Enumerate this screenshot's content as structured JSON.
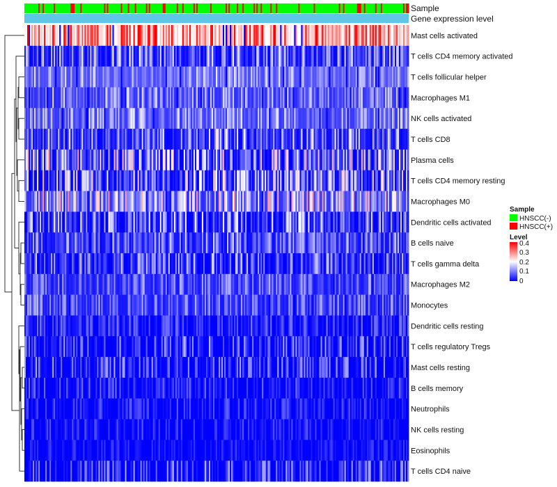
{
  "chart_data": {
    "type": "heatmap",
    "title": "",
    "n_samples": 275,
    "rows": [
      {
        "label": "Mast cells activated",
        "mean": 0.27,
        "spread": 0.13
      },
      {
        "label": "T cells CD4 memory activated",
        "mean": 0.05,
        "spread": 0.09
      },
      {
        "label": "T cells follicular helper",
        "mean": 0.09,
        "spread": 0.06
      },
      {
        "label": "Macrophages M1",
        "mean": 0.07,
        "spread": 0.07
      },
      {
        "label": "NK cells activated",
        "mean": 0.08,
        "spread": 0.07
      },
      {
        "label": "T cells CD8",
        "mean": 0.06,
        "spread": 0.1
      },
      {
        "label": "Plasma cells",
        "mean": 0.07,
        "spread": 0.13
      },
      {
        "label": "T cells CD4 memory resting",
        "mean": 0.06,
        "spread": 0.12
      },
      {
        "label": "Macrophages M0",
        "mean": 0.1,
        "spread": 0.12
      },
      {
        "label": "Dendritic cells activated",
        "mean": 0.05,
        "spread": 0.1
      },
      {
        "label": "B cells naive",
        "mean": 0.05,
        "spread": 0.07
      },
      {
        "label": "T cells gamma delta",
        "mean": 0.04,
        "spread": 0.08
      },
      {
        "label": "Macrophages M2",
        "mean": 0.05,
        "spread": 0.06
      },
      {
        "label": "Monocytes",
        "mean": 0.05,
        "spread": 0.06
      },
      {
        "label": "Dendritic cells resting",
        "mean": 0.02,
        "spread": 0.05
      },
      {
        "label": "T cells regulatory  Tregs",
        "mean": 0.01,
        "spread": 0.08
      },
      {
        "label": "Mast cells resting",
        "mean": 0.01,
        "spread": 0.08
      },
      {
        "label": "B cells memory",
        "mean": 0.01,
        "spread": 0.05
      },
      {
        "label": "Neutrophils",
        "mean": 0.01,
        "spread": 0.04
      },
      {
        "label": "NK cells resting",
        "mean": 0.005,
        "spread": 0.04
      },
      {
        "label": "Eosinophils",
        "mean": 0.003,
        "spread": 0.03
      },
      {
        "label": "T cells CD4 naive",
        "mean": 0.01,
        "spread": 0.08
      }
    ],
    "annotations": [
      {
        "label": "Sample",
        "kind": "categorical",
        "fraction_positive": 0.17
      },
      {
        "label": "Gene expression level",
        "kind": "constant",
        "color": "#5fc6e8"
      }
    ],
    "color_scale": {
      "min": 0,
      "max": 0.4,
      "low": "#0000ff",
      "mid": "#ffffff",
      "high": "#ff0000",
      "midpoint": 0.2
    },
    "legend": {
      "sample": {
        "title": "Sample",
        "items": [
          {
            "label": "HNSCC(-)",
            "color": "#00ff00"
          },
          {
            "label": "HNSCC(+)",
            "color": "#ff0000"
          }
        ]
      },
      "level": {
        "title": "Level",
        "ticks": [
          "0.4",
          "0.3",
          "0.2",
          "0.1",
          "0"
        ]
      }
    }
  }
}
